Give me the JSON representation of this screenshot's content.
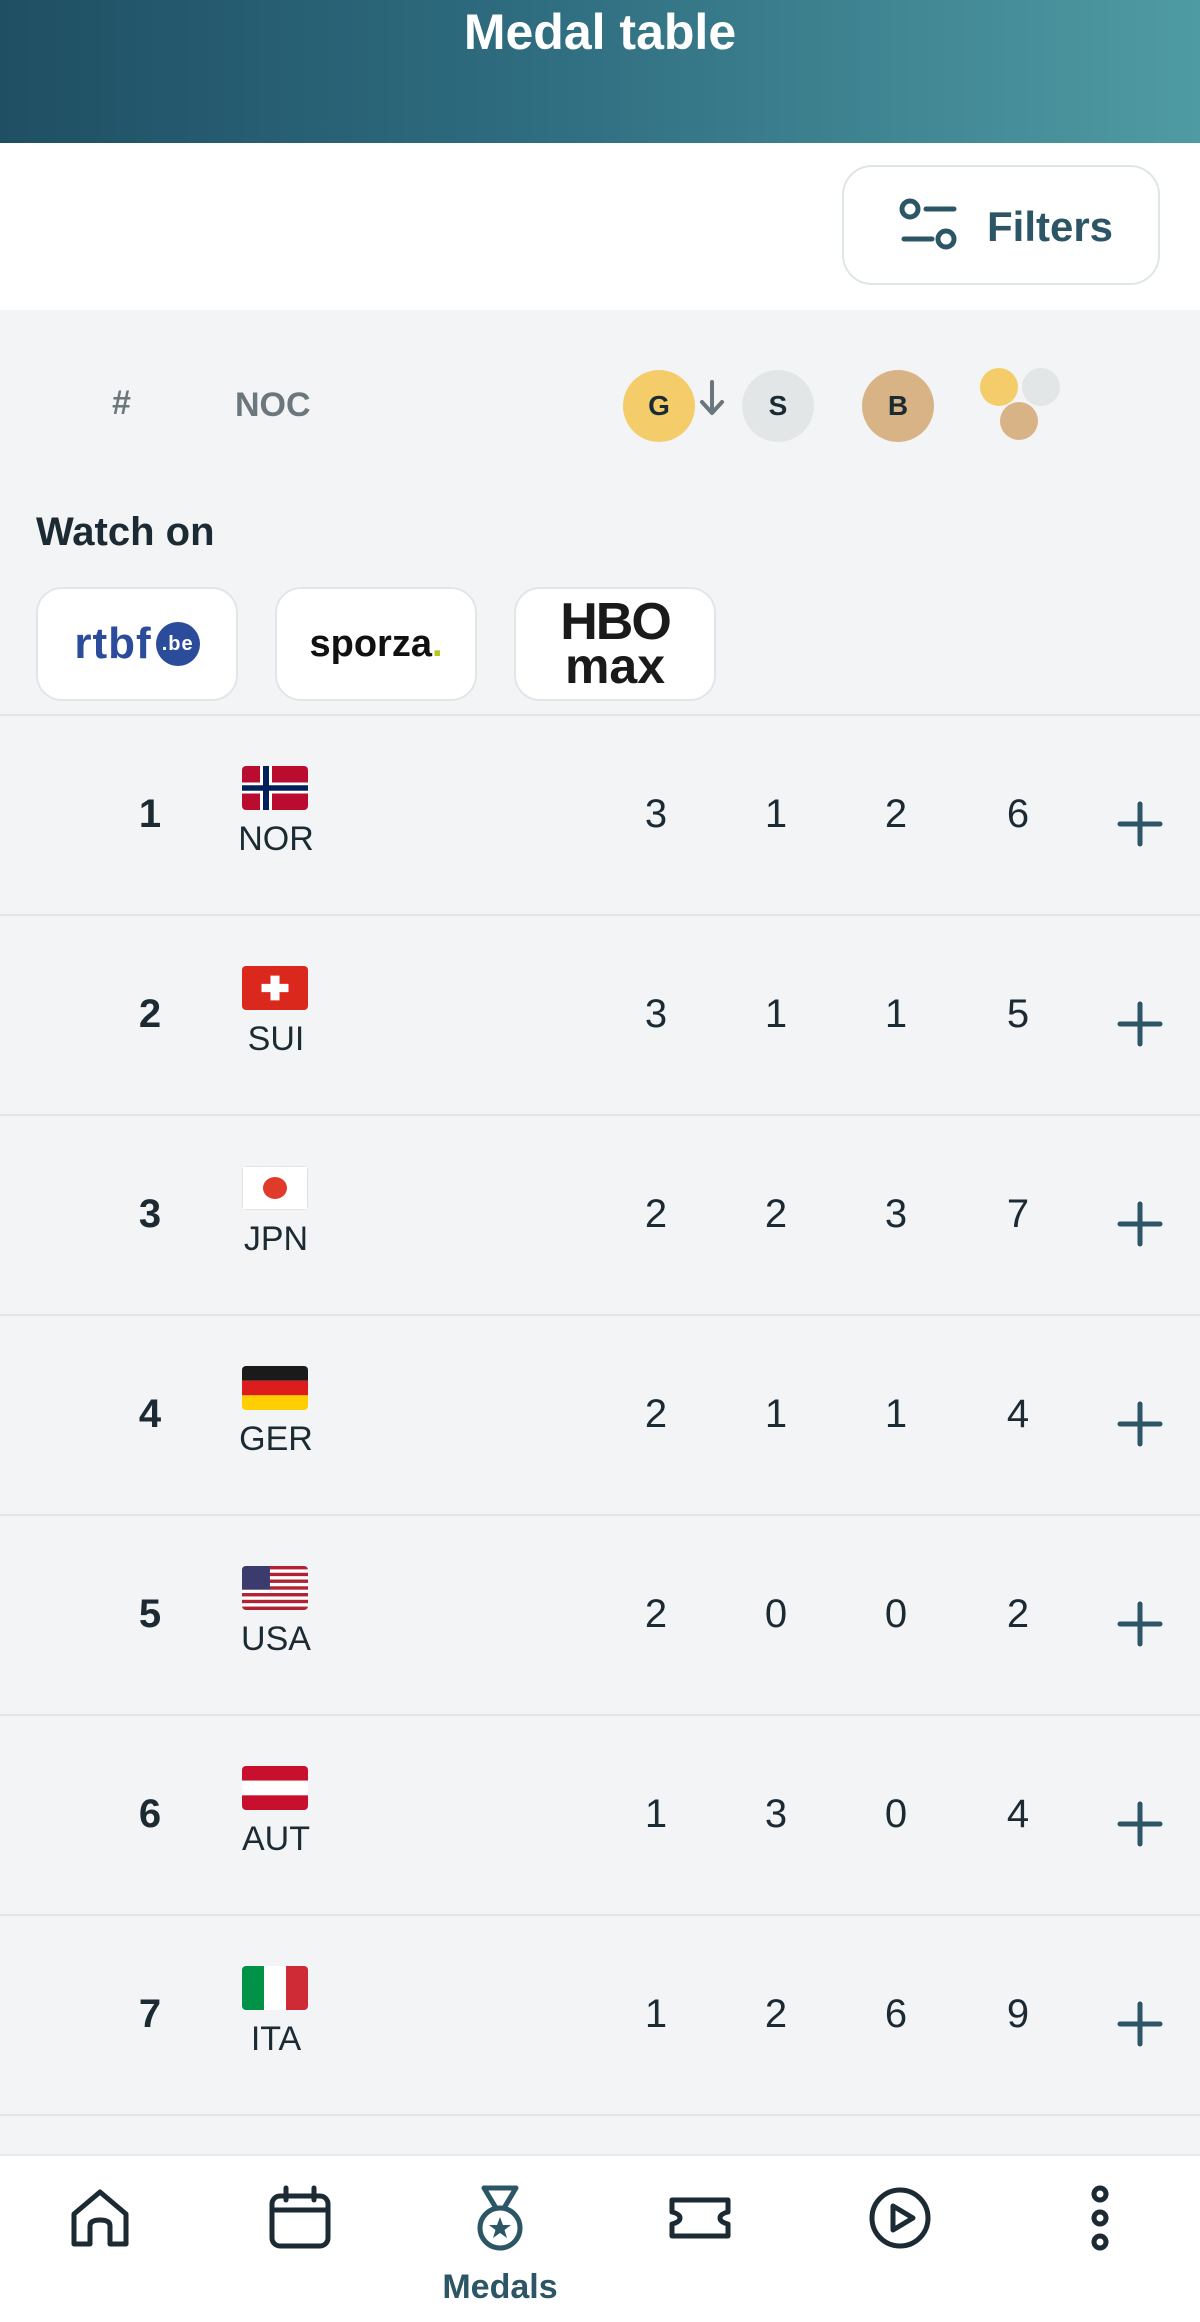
{
  "header": {
    "title": "Medal table"
  },
  "filters": {
    "label": "Filters",
    "icon": "filter-sliders-icon"
  },
  "table_header": {
    "rank": "#",
    "noc": "NOC",
    "gold": "G",
    "silver": "S",
    "bronze": "B",
    "sort_icon": "arrow-down-icon",
    "total_icon": "total-medals-icon"
  },
  "watch": {
    "title": "Watch on",
    "broadcasters": [
      {
        "name": "rtbf",
        "suffix": ".be"
      },
      {
        "name": "sporza",
        "suffix": "."
      },
      {
        "name_top": "HBO",
        "name_bottom": "max"
      }
    ]
  },
  "rows": [
    {
      "rank": "1",
      "noc": "NOR",
      "gold": "3",
      "silver": "1",
      "bronze": "2",
      "total": "6"
    },
    {
      "rank": "2",
      "noc": "SUI",
      "gold": "3",
      "silver": "1",
      "bronze": "1",
      "total": "5"
    },
    {
      "rank": "3",
      "noc": "JPN",
      "gold": "2",
      "silver": "2",
      "bronze": "3",
      "total": "7"
    },
    {
      "rank": "4",
      "noc": "GER",
      "gold": "2",
      "silver": "1",
      "bronze": "1",
      "total": "4"
    },
    {
      "rank": "5",
      "noc": "USA",
      "gold": "2",
      "silver": "0",
      "bronze": "0",
      "total": "2"
    },
    {
      "rank": "6",
      "noc": "AUT",
      "gold": "1",
      "silver": "3",
      "bronze": "0",
      "total": "4"
    },
    {
      "rank": "7",
      "noc": "ITA",
      "gold": "1",
      "silver": "2",
      "bronze": "6",
      "total": "9"
    }
  ],
  "bottom_nav": {
    "items": [
      {
        "icon": "home-icon"
      },
      {
        "icon": "calendar-icon"
      },
      {
        "icon": "medal-icon",
        "label": "Medals"
      },
      {
        "icon": "ticket-icon"
      },
      {
        "icon": "play-icon"
      },
      {
        "icon": "more-icon"
      }
    ]
  },
  "colors": {
    "accent": "#2c5566",
    "gold": "#f4cc69",
    "silver": "#e3e6e7",
    "bronze": "#d8b386"
  }
}
